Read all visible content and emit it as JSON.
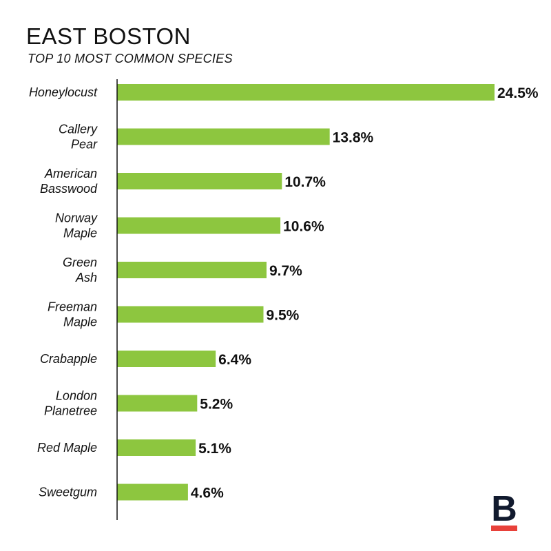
{
  "chart_data": {
    "type": "bar",
    "orientation": "horizontal",
    "title": "EAST BOSTON",
    "subtitle": "TOP 10 MOST COMMON SPECIES",
    "xlabel": "",
    "ylabel": "",
    "unit": "%",
    "grid": false,
    "categories": [
      [
        "Honeylocust"
      ],
      [
        "Callery",
        "Pear"
      ],
      [
        "American",
        "Basswood"
      ],
      [
        "Norway",
        "Maple"
      ],
      [
        "Green",
        "Ash"
      ],
      [
        "Freeman",
        "Maple"
      ],
      [
        "Crabapple"
      ],
      [
        "London",
        "Planetree"
      ],
      [
        "Red Maple"
      ],
      [
        "Sweetgum"
      ]
    ],
    "values": [
      24.5,
      13.8,
      10.7,
      10.6,
      9.7,
      9.5,
      6.4,
      5.2,
      5.1,
      4.6
    ],
    "value_labels": [
      "24.5%",
      "13.8%",
      "10.7%",
      "10.6%",
      "9.7%",
      "9.5%",
      "6.4%",
      "5.2%",
      "5.1%",
      "4.6%"
    ],
    "xlim": [
      0,
      24.5
    ],
    "bar_color": "#8dc63f"
  },
  "brand": {
    "icon": "b-logo-icon",
    "letter": "B",
    "letter_color": "#111a2e",
    "underline_color": "#e8413a"
  }
}
